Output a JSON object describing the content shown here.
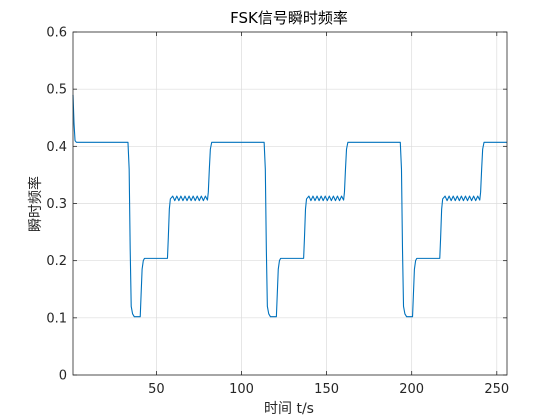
{
  "chart_data": {
    "type": "line",
    "title": "FSK信号瞬时频率",
    "xlabel": "时间 t/s",
    "ylabel": "瞬时频率",
    "xlim": [
      1,
      256
    ],
    "ylim": [
      0,
      0.6
    ],
    "xticks": [
      50,
      100,
      150,
      200,
      250
    ],
    "yticks": [
      0,
      0.1,
      0.2,
      0.3,
      0.4,
      0.5,
      0.6
    ],
    "xtick_labels": [
      "50",
      "100",
      "150",
      "200",
      "250"
    ],
    "ytick_labels": [
      "0",
      "0.1",
      "0.2",
      "0.3",
      "0.4",
      "0.5",
      "0.6"
    ],
    "grid": true,
    "series": [
      {
        "color": "#0072BD",
        "points": [
          [
            1,
            0.49
          ],
          [
            1.6,
            0.44
          ],
          [
            2.2,
            0.41
          ],
          [
            3,
            0.407
          ],
          [
            33.3,
            0.407
          ],
          [
            34,
            0.36
          ],
          [
            34.6,
            0.22
          ],
          [
            35.2,
            0.12
          ],
          [
            36,
            0.107
          ],
          [
            37,
            0.102
          ],
          [
            40.5,
            0.102
          ],
          [
            41,
            0.14
          ],
          [
            41.6,
            0.185
          ],
          [
            42.3,
            0.2
          ],
          [
            43,
            0.204
          ],
          [
            56.5,
            0.204
          ],
          [
            57,
            0.24
          ],
          [
            57.6,
            0.29
          ],
          [
            58.2,
            0.308
          ],
          [
            59.6,
            0.313
          ],
          [
            60.8,
            0.305
          ],
          [
            62,
            0.313
          ],
          [
            63.2,
            0.305
          ],
          [
            64.4,
            0.313
          ],
          [
            65.6,
            0.305
          ],
          [
            66.8,
            0.313
          ],
          [
            68,
            0.305
          ],
          [
            69.2,
            0.313
          ],
          [
            70.4,
            0.305
          ],
          [
            71.6,
            0.313
          ],
          [
            72.8,
            0.305
          ],
          [
            74,
            0.313
          ],
          [
            75.2,
            0.305
          ],
          [
            76.4,
            0.313
          ],
          [
            77.6,
            0.305
          ],
          [
            78.8,
            0.313
          ],
          [
            80,
            0.306
          ],
          [
            80.5,
            0.32
          ],
          [
            81.1,
            0.36
          ],
          [
            81.7,
            0.395
          ],
          [
            82.5,
            0.407
          ],
          [
            113.3,
            0.407
          ],
          [
            114,
            0.36
          ],
          [
            114.6,
            0.22
          ],
          [
            115.2,
            0.12
          ],
          [
            116,
            0.107
          ],
          [
            117,
            0.102
          ],
          [
            120.5,
            0.102
          ],
          [
            121,
            0.14
          ],
          [
            121.6,
            0.185
          ],
          [
            122.3,
            0.2
          ],
          [
            123,
            0.204
          ],
          [
            136.5,
            0.204
          ],
          [
            137,
            0.24
          ],
          [
            137.6,
            0.29
          ],
          [
            138.2,
            0.308
          ],
          [
            139.6,
            0.313
          ],
          [
            140.8,
            0.305
          ],
          [
            142,
            0.313
          ],
          [
            143.2,
            0.305
          ],
          [
            144.4,
            0.313
          ],
          [
            145.6,
            0.305
          ],
          [
            146.8,
            0.313
          ],
          [
            148,
            0.305
          ],
          [
            149.2,
            0.313
          ],
          [
            150.4,
            0.305
          ],
          [
            151.6,
            0.313
          ],
          [
            152.8,
            0.305
          ],
          [
            154,
            0.313
          ],
          [
            155.2,
            0.305
          ],
          [
            156.4,
            0.313
          ],
          [
            157.6,
            0.305
          ],
          [
            158.8,
            0.313
          ],
          [
            160,
            0.306
          ],
          [
            160.5,
            0.32
          ],
          [
            161.1,
            0.36
          ],
          [
            161.7,
            0.395
          ],
          [
            162.5,
            0.407
          ],
          [
            193.3,
            0.407
          ],
          [
            194,
            0.36
          ],
          [
            194.6,
            0.22
          ],
          [
            195.2,
            0.12
          ],
          [
            196,
            0.107
          ],
          [
            197,
            0.102
          ],
          [
            200.5,
            0.102
          ],
          [
            201,
            0.14
          ],
          [
            201.6,
            0.185
          ],
          [
            202.3,
            0.2
          ],
          [
            203,
            0.204
          ],
          [
            216.5,
            0.204
          ],
          [
            217,
            0.24
          ],
          [
            217.6,
            0.29
          ],
          [
            218.2,
            0.308
          ],
          [
            219.6,
            0.313
          ],
          [
            220.8,
            0.305
          ],
          [
            222,
            0.313
          ],
          [
            223.2,
            0.305
          ],
          [
            224.4,
            0.313
          ],
          [
            225.6,
            0.305
          ],
          [
            226.8,
            0.313
          ],
          [
            228,
            0.305
          ],
          [
            229.2,
            0.313
          ],
          [
            230.4,
            0.305
          ],
          [
            231.6,
            0.313
          ],
          [
            232.8,
            0.305
          ],
          [
            234,
            0.313
          ],
          [
            235.2,
            0.305
          ],
          [
            236.4,
            0.313
          ],
          [
            237.6,
            0.305
          ],
          [
            238.8,
            0.313
          ],
          [
            240,
            0.306
          ],
          [
            240.5,
            0.32
          ],
          [
            241.1,
            0.36
          ],
          [
            241.7,
            0.395
          ],
          [
            242.5,
            0.407
          ],
          [
            256,
            0.407
          ]
        ]
      }
    ]
  }
}
